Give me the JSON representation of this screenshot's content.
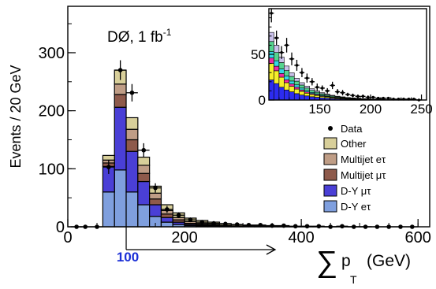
{
  "chart_data": [
    {
      "type": "bar",
      "subtype": "stacked histogram with data points",
      "annotation": "DØ, 1 fb",
      "annotation_superscript": "-1",
      "ylabel": "Events / 20 GeV",
      "xlabel_symbol": "∑",
      "xlabel_var": "p",
      "xlabel_sub": "T",
      "xlabel_unit": "(GeV)",
      "xlim": [
        0,
        620
      ],
      "ylim": [
        0,
        380
      ],
      "xticks": [
        "0",
        "200",
        "400",
        "600"
      ],
      "yticks": [
        "0",
        "100",
        "200",
        "300"
      ],
      "cut_label": "100",
      "cut_value": 100,
      "cut_color": "#1b2fd6",
      "bin_edges": [
        60,
        80,
        100,
        120,
        140,
        160,
        180,
        200,
        220,
        240,
        260,
        280,
        300,
        320,
        340,
        360,
        380,
        400,
        420,
        440,
        460,
        480,
        500,
        520,
        540,
        560,
        580,
        600,
        620
      ],
      "series": [
        {
          "name": "D-Y eτ",
          "color": "#7f9fde",
          "values": [
            60,
            98,
            60,
            38,
            18,
            8,
            4,
            2,
            1.2,
            0.8,
            0.5,
            0.3,
            0.2,
            0.1,
            0.1,
            0,
            0,
            0,
            0,
            0,
            0,
            0,
            0,
            0,
            0,
            0,
            0,
            0
          ]
        },
        {
          "name": "D-Y μτ",
          "color": "#4a3fd6",
          "values": [
            44,
            108,
            70,
            40,
            20,
            8,
            4,
            2,
            1.2,
            0.8,
            0.5,
            0.3,
            0.2,
            0.1,
            0.1,
            0,
            0,
            0,
            0,
            0,
            0,
            0,
            0,
            0,
            0,
            0,
            0,
            0
          ]
        },
        {
          "name": "Multijet μτ",
          "color": "#8e5a4b",
          "values": [
            6,
            22,
            20,
            14,
            10,
            6,
            4,
            2,
            1.5,
            1,
            0.6,
            0.4,
            0.3,
            0.2,
            0.1,
            0.1,
            0,
            0,
            0,
            0,
            0,
            0,
            0,
            0,
            0,
            0,
            0,
            0
          ]
        },
        {
          "name": "Multijet eτ",
          "color": "#bf9d86",
          "values": [
            5,
            18,
            18,
            14,
            10,
            6,
            4,
            3,
            2,
            1.5,
            1,
            0.6,
            0.4,
            0.3,
            0.2,
            0.1,
            0.1,
            0,
            0,
            0,
            0,
            0,
            0,
            0,
            0,
            0,
            0,
            0
          ]
        },
        {
          "name": "Other",
          "color": "#d8cf9a",
          "values": [
            8,
            24,
            20,
            14,
            12,
            10,
            8,
            6,
            5,
            4,
            3,
            2,
            1.5,
            1,
            0.8,
            0.5,
            0.4,
            0.3,
            0.2,
            0.2,
            0.1,
            0.1,
            0.1,
            0,
            0,
            0,
            0,
            0
          ]
        }
      ],
      "data_name": "Data",
      "data_points": [
        {
          "x": 15,
          "y": 0
        },
        {
          "x": 30,
          "y": 0
        },
        {
          "x": 50,
          "y": 0
        },
        {
          "x": 70,
          "y": 103,
          "err": 12
        },
        {
          "x": 90,
          "y": 270,
          "err": 17
        },
        {
          "x": 110,
          "y": 231,
          "err": 15
        },
        {
          "x": 130,
          "y": 132,
          "err": 12
        },
        {
          "x": 150,
          "y": 67,
          "err": 8
        },
        {
          "x": 170,
          "y": 30,
          "err": 6
        },
        {
          "x": 190,
          "y": 20,
          "err": 5
        },
        {
          "x": 210,
          "y": 12,
          "err": 4
        },
        {
          "x": 230,
          "y": 8,
          "err": 3
        },
        {
          "x": 250,
          "y": 6,
          "err": 3
        },
        {
          "x": 270,
          "y": 5,
          "err": 2
        },
        {
          "x": 290,
          "y": 4,
          "err": 2
        },
        {
          "x": 310,
          "y": 3,
          "err": 2
        },
        {
          "x": 330,
          "y": 3,
          "err": 2
        },
        {
          "x": 350,
          "y": 2
        },
        {
          "x": 370,
          "y": 2
        },
        {
          "x": 390,
          "y": 1
        },
        {
          "x": 410,
          "y": 1
        },
        {
          "x": 430,
          "y": 1
        },
        {
          "x": 450,
          "y": 0
        },
        {
          "x": 470,
          "y": 1
        },
        {
          "x": 490,
          "y": 0
        },
        {
          "x": 510,
          "y": 0
        },
        {
          "x": 530,
          "y": 0
        },
        {
          "x": 550,
          "y": 0
        },
        {
          "x": 570,
          "y": 0
        },
        {
          "x": 590,
          "y": 0
        }
      ]
    },
    {
      "type": "bar",
      "subtype": "inset stacked histogram (ΣpT > 100 GeV)",
      "xlim": [
        100,
        255
      ],
      "ylim": [
        0,
        100
      ],
      "xticks": [
        "150",
        "200",
        "250"
      ],
      "yticks": [
        "0",
        "50"
      ],
      "bin_edges": [
        100,
        105,
        110,
        115,
        120,
        125,
        130,
        135,
        140,
        145,
        150,
        155,
        160,
        165,
        170,
        175,
        180,
        185,
        190,
        195,
        200,
        205,
        210,
        215,
        220,
        225,
        230,
        235,
        240,
        245,
        250,
        255
      ],
      "series": [
        {
          "name": "blue",
          "color": "#2c2cf0",
          "values": [
            22,
            18,
            14,
            11,
            9,
            7,
            5.5,
            4.5,
            3.6,
            3,
            2.4,
            2,
            1.6,
            1.3,
            1,
            0.8,
            0.7,
            0.6,
            0.5,
            0.4,
            0.3,
            0.3,
            0.2,
            0.2,
            0.2,
            0.1,
            0.1,
            0.1,
            0.1,
            0.1,
            0.1
          ]
        },
        {
          "name": "yellow",
          "color": "#f6ef2a",
          "values": [
            18,
            14,
            11,
            8,
            6,
            5,
            4,
            3,
            2.5,
            2,
            1.6,
            1.3,
            1,
            0.8,
            0.7,
            0.5,
            0.4,
            0.4,
            0.3,
            0.3,
            0.2,
            0.2,
            0.2,
            0.1,
            0.1,
            0.1,
            0.1,
            0.1,
            0.1,
            0.1,
            0
          ]
        },
        {
          "name": "magenta",
          "color": "#ee2aa4",
          "values": [
            6,
            5,
            4,
            3.2,
            2.6,
            2,
            1.6,
            1.3,
            1,
            0.8,
            0.6,
            0.5,
            0.4,
            0.3,
            0.3,
            0.2,
            0.2,
            0.1,
            0.1,
            0.1,
            0.1,
            0.1,
            0,
            0,
            0,
            0,
            0,
            0,
            0,
            0,
            0
          ]
        },
        {
          "name": "cyan",
          "color": "#36d8e6",
          "values": [
            7,
            6,
            5,
            4,
            3.2,
            2.6,
            2,
            1.6,
            1.3,
            1,
            0.8,
            0.6,
            0.5,
            0.4,
            0.3,
            0.3,
            0.2,
            0.2,
            0.1,
            0.1,
            0.1,
            0.1,
            0.1,
            0,
            0,
            0,
            0,
            0,
            0,
            0,
            0
          ]
        },
        {
          "name": "green",
          "color": "#55d48f",
          "values": [
            11,
            9,
            7,
            6,
            5,
            4,
            3.3,
            2.7,
            2.2,
            1.8,
            1.5,
            1.2,
            1,
            0.8,
            0.7,
            0.6,
            0.5,
            0.4,
            0.3,
            0.3,
            0.2,
            0.2,
            0.2,
            0.1,
            0.1,
            0.1,
            0.1,
            0.1,
            0.1,
            0.1,
            0.1
          ]
        },
        {
          "name": "lilac",
          "color": "#c9c0ea",
          "values": [
            10,
            8,
            6,
            5,
            4,
            3.2,
            2.6,
            2.1,
            1.7,
            1.4,
            1.1,
            0.9,
            0.7,
            0.6,
            0.5,
            0.4,
            0.3,
            0.3,
            0.2,
            0.2,
            0.2,
            0.1,
            0.1,
            0.1,
            0.1,
            0.1,
            0.1,
            0,
            0,
            0,
            0
          ]
        }
      ],
      "data_points": [
        {
          "x": 102.5,
          "y": 95,
          "err": 10
        },
        {
          "x": 107.5,
          "y": 68,
          "err": 8
        },
        {
          "x": 112.5,
          "y": 52,
          "err": 7
        },
        {
          "x": 117.5,
          "y": 60,
          "err": 8
        },
        {
          "x": 122.5,
          "y": 45,
          "err": 7
        },
        {
          "x": 127.5,
          "y": 38,
          "err": 6
        },
        {
          "x": 132.5,
          "y": 30,
          "err": 5
        },
        {
          "x": 137.5,
          "y": 24,
          "err": 5
        },
        {
          "x": 142.5,
          "y": 20,
          "err": 4
        },
        {
          "x": 147.5,
          "y": 14,
          "err": 4
        },
        {
          "x": 152.5,
          "y": 13,
          "err": 3
        },
        {
          "x": 157.5,
          "y": 10,
          "err": 3
        },
        {
          "x": 162.5,
          "y": 16,
          "err": 4
        },
        {
          "x": 167.5,
          "y": 9,
          "err": 3
        },
        {
          "x": 172.5,
          "y": 8,
          "err": 3
        },
        {
          "x": 177.5,
          "y": 6,
          "err": 2
        },
        {
          "x": 182.5,
          "y": 5,
          "err": 2
        },
        {
          "x": 187.5,
          "y": 4,
          "err": 2
        },
        {
          "x": 192.5,
          "y": 4,
          "err": 2
        },
        {
          "x": 197.5,
          "y": 3,
          "err": 2
        },
        {
          "x": 202.5,
          "y": 3
        },
        {
          "x": 207.5,
          "y": 2
        },
        {
          "x": 212.5,
          "y": 2
        },
        {
          "x": 217.5,
          "y": 2
        },
        {
          "x": 222.5,
          "y": 1
        },
        {
          "x": 227.5,
          "y": 1
        },
        {
          "x": 232.5,
          "y": 1
        },
        {
          "x": 237.5,
          "y": 1
        },
        {
          "x": 242.5,
          "y": 1
        },
        {
          "x": 247.5,
          "y": 0
        }
      ]
    }
  ]
}
